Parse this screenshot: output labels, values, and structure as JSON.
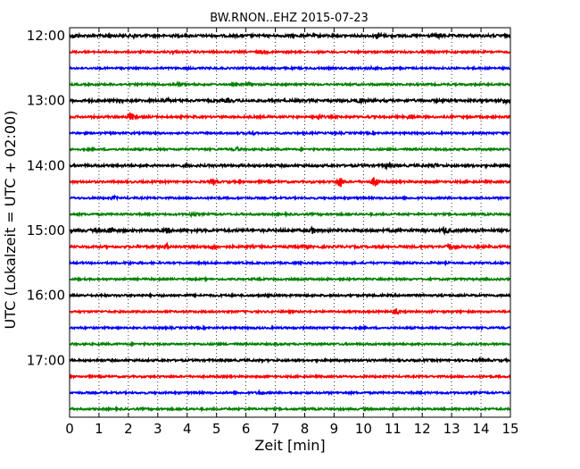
{
  "chart_data": {
    "type": "line",
    "title": "BW.RNON..EHZ 2015-07-23",
    "xlabel": "Zeit  [min]",
    "ylabel": "UTC (Lokalzeit = UTC + 02:00)",
    "xlim": [
      0,
      15
    ],
    "x_ticks": [
      "0",
      "1",
      "2",
      "3",
      "4",
      "5",
      "6",
      "7",
      "8",
      "9",
      "10",
      "11",
      "12",
      "13",
      "14",
      "15"
    ],
    "y_tick_labels": [
      "12:00",
      "13:00",
      "14:00",
      "15:00",
      "16:00",
      "17:00"
    ],
    "row_interval_minutes": 15,
    "row_count": 24,
    "start_time_utc": "12:00",
    "grid": "vertical dotted lines at each minute",
    "trace_colors": [
      "#000000",
      "#ff0000",
      "#0000ff",
      "#008000"
    ],
    "series": [
      {
        "start": "12:00",
        "color": "#000000",
        "noise": 1.2,
        "events": [
          [
            0.2,
            1.6
          ],
          [
            1.3,
            1.3
          ],
          [
            2.2,
            1.4
          ],
          [
            10.5,
            2.2
          ],
          [
            12.6,
            1.3
          ]
        ]
      },
      {
        "start": "12:15",
        "color": "#ff0000",
        "noise": 0.9,
        "events": [
          [
            3.5,
            1.0
          ],
          [
            6.6,
            1.0
          ],
          [
            12.3,
            1.0
          ]
        ]
      },
      {
        "start": "12:30",
        "color": "#0000ff",
        "noise": 0.9,
        "events": [
          [
            10.2,
            0.9
          ]
        ]
      },
      {
        "start": "12:45",
        "color": "#008000",
        "noise": 0.9,
        "events": [
          [
            3.7,
            1.4
          ],
          [
            6.1,
            1.2
          ]
        ]
      },
      {
        "start": "13:00",
        "color": "#000000",
        "noise": 1.2,
        "events": [
          [
            3.3,
            1.5
          ],
          [
            5.4,
            1.3
          ],
          [
            9.9,
            1.8
          ],
          [
            14.8,
            2.5
          ]
        ]
      },
      {
        "start": "13:15",
        "color": "#ff0000",
        "noise": 1.0,
        "events": [
          [
            2.1,
            3.0
          ],
          [
            8.5,
            1.5
          ],
          [
            11.6,
            1.8
          ]
        ]
      },
      {
        "start": "13:30",
        "color": "#0000ff",
        "noise": 0.9,
        "events": [
          [
            6.2,
            1.1
          ]
        ]
      },
      {
        "start": "13:45",
        "color": "#008000",
        "noise": 0.9,
        "events": [
          [
            5.7,
            1.5
          ]
        ]
      },
      {
        "start": "14:00",
        "color": "#000000",
        "noise": 1.1,
        "events": [
          [
            4.0,
            1.2
          ],
          [
            10.8,
            1.6
          ],
          [
            12.4,
            1.3
          ]
        ]
      },
      {
        "start": "14:15",
        "color": "#ff0000",
        "noise": 1.0,
        "events": [
          [
            4.9,
            2.0
          ],
          [
            9.2,
            4.2
          ],
          [
            10.4,
            4.5
          ]
        ]
      },
      {
        "start": "14:30",
        "color": "#0000ff",
        "noise": 0.9,
        "events": [
          [
            1.5,
            1.1
          ]
        ]
      },
      {
        "start": "14:45",
        "color": "#008000",
        "noise": 0.9,
        "events": [
          [
            4.2,
            1.6
          ]
        ]
      },
      {
        "start": "15:00",
        "color": "#000000",
        "noise": 1.3,
        "events": [
          [
            1.4,
            2.5
          ],
          [
            3.3,
            1.8
          ],
          [
            8.3,
            2.2
          ],
          [
            12.8,
            2.4
          ]
        ]
      },
      {
        "start": "15:15",
        "color": "#ff0000",
        "noise": 1.1,
        "events": [
          [
            3.3,
            2.2
          ],
          [
            4.9,
            1.8
          ],
          [
            7.9,
            1.8
          ],
          [
            12.9,
            2.5
          ]
        ]
      },
      {
        "start": "15:30",
        "color": "#0000ff",
        "noise": 0.9,
        "events": [
          [
            2.0,
            1.0
          ]
        ]
      },
      {
        "start": "15:45",
        "color": "#008000",
        "noise": 0.9,
        "events": []
      },
      {
        "start": "16:00",
        "color": "#000000",
        "noise": 1.0,
        "events": []
      },
      {
        "start": "16:15",
        "color": "#ff0000",
        "noise": 0.9,
        "events": [
          [
            11.1,
            1.8
          ]
        ]
      },
      {
        "start": "16:30",
        "color": "#0000ff",
        "noise": 0.9,
        "events": []
      },
      {
        "start": "16:45",
        "color": "#008000",
        "noise": 0.9,
        "events": []
      },
      {
        "start": "17:00",
        "color": "#000000",
        "noise": 1.0,
        "events": [
          [
            14.0,
            1.0
          ]
        ]
      },
      {
        "start": "17:15",
        "color": "#ff0000",
        "noise": 0.9,
        "events": []
      },
      {
        "start": "17:30",
        "color": "#0000ff",
        "noise": 0.9,
        "events": [
          [
            6.5,
            1.2
          ]
        ]
      },
      {
        "start": "17:45",
        "color": "#008000",
        "noise": 0.9,
        "events": []
      }
    ]
  }
}
